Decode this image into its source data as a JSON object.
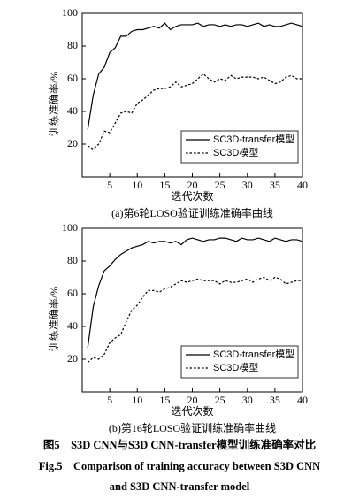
{
  "chart_data": [
    {
      "type": "line",
      "title": "(a)第6轮LOSO验证训练准确率曲线",
      "xlabel": "迭代次数",
      "ylabel": "训练准确率/%",
      "x": [
        1,
        2,
        3,
        4,
        5,
        6,
        7,
        8,
        9,
        10,
        11,
        12,
        13,
        14,
        15,
        16,
        17,
        18,
        19,
        20,
        21,
        22,
        23,
        24,
        25,
        26,
        27,
        28,
        29,
        30,
        31,
        32,
        33,
        34,
        35,
        36,
        37,
        38,
        39,
        40
      ],
      "series": [
        {
          "name": "SC3D-transfer模型",
          "color": "#000000",
          "line_style": "solid",
          "values": [
            29,
            50,
            63,
            67,
            76,
            79,
            86,
            86,
            89,
            90,
            90,
            91,
            92,
            91,
            94,
            90,
            92,
            93,
            93,
            93,
            94,
            92,
            93,
            93,
            92,
            93,
            92,
            93,
            93,
            92,
            93,
            94,
            92,
            93,
            92,
            92,
            93,
            94,
            93,
            92
          ]
        },
        {
          "name": "SC3D模型",
          "color": "#000000",
          "line_style": "dashed",
          "values": [
            19,
            17,
            20,
            28,
            27,
            33,
            39,
            40,
            39,
            45,
            47,
            50,
            53,
            54,
            54,
            55,
            58,
            55,
            56,
            57,
            60,
            63,
            60,
            58,
            60,
            59,
            62,
            60,
            61,
            61,
            61,
            60,
            61,
            59,
            57,
            58,
            61,
            62,
            60,
            60
          ]
        }
      ],
      "xlim": [
        0,
        40
      ],
      "xticks": [
        5,
        10,
        15,
        20,
        25,
        30,
        35,
        40
      ],
      "ylim": [
        0,
        100
      ],
      "yticks": [
        20,
        40,
        60,
        80,
        100
      ],
      "legend": "lower right"
    },
    {
      "type": "line",
      "title": "(b)第16轮LOSO验证训练准确率曲线",
      "xlabel": "迭代次数",
      "ylabel": "训练准确率/%",
      "x": [
        1,
        2,
        3,
        4,
        5,
        6,
        7,
        8,
        9,
        10,
        11,
        12,
        13,
        14,
        15,
        16,
        17,
        18,
        19,
        20,
        21,
        22,
        23,
        24,
        25,
        26,
        27,
        28,
        29,
        30,
        31,
        32,
        33,
        34,
        35,
        36,
        37,
        38,
        39,
        40
      ],
      "series": [
        {
          "name": "SC3D-transfer模型",
          "color": "#000000",
          "line_style": "solid",
          "values": [
            27,
            52,
            65,
            74,
            77,
            81,
            84,
            86,
            88,
            89,
            90,
            92,
            91,
            92,
            92,
            91,
            92,
            90,
            93,
            94,
            93,
            92,
            93,
            93,
            94,
            94,
            93,
            92,
            94,
            93,
            93,
            94,
            93,
            92,
            94,
            93,
            92,
            93,
            93,
            92
          ]
        },
        {
          "name": "SC3D模型",
          "color": "#000000",
          "line_style": "dashed",
          "values": [
            18,
            21,
            20,
            23,
            30,
            33,
            35,
            43,
            50,
            53,
            58,
            62,
            62,
            61,
            63,
            64,
            66,
            68,
            67,
            68,
            69,
            68,
            68,
            68,
            66,
            68,
            67,
            67,
            68,
            69,
            67,
            69,
            70,
            68,
            70,
            69,
            66,
            67,
            68,
            68
          ]
        }
      ],
      "xlim": [
        0,
        40
      ],
      "xticks": [
        5,
        10,
        15,
        20,
        25,
        30,
        35,
        40
      ],
      "ylim": [
        0,
        100
      ],
      "yticks": [
        20,
        40,
        60,
        80,
        100
      ],
      "legend": "lower right"
    }
  ],
  "figure_caption": {
    "zh": "图5　S3D CNN与S3D CNN-transfer模型训练准确率对比",
    "en": [
      "Fig.5　Comparison of training accuracy between S3D CNN",
      "and S3D CNN-transfer model"
    ]
  }
}
